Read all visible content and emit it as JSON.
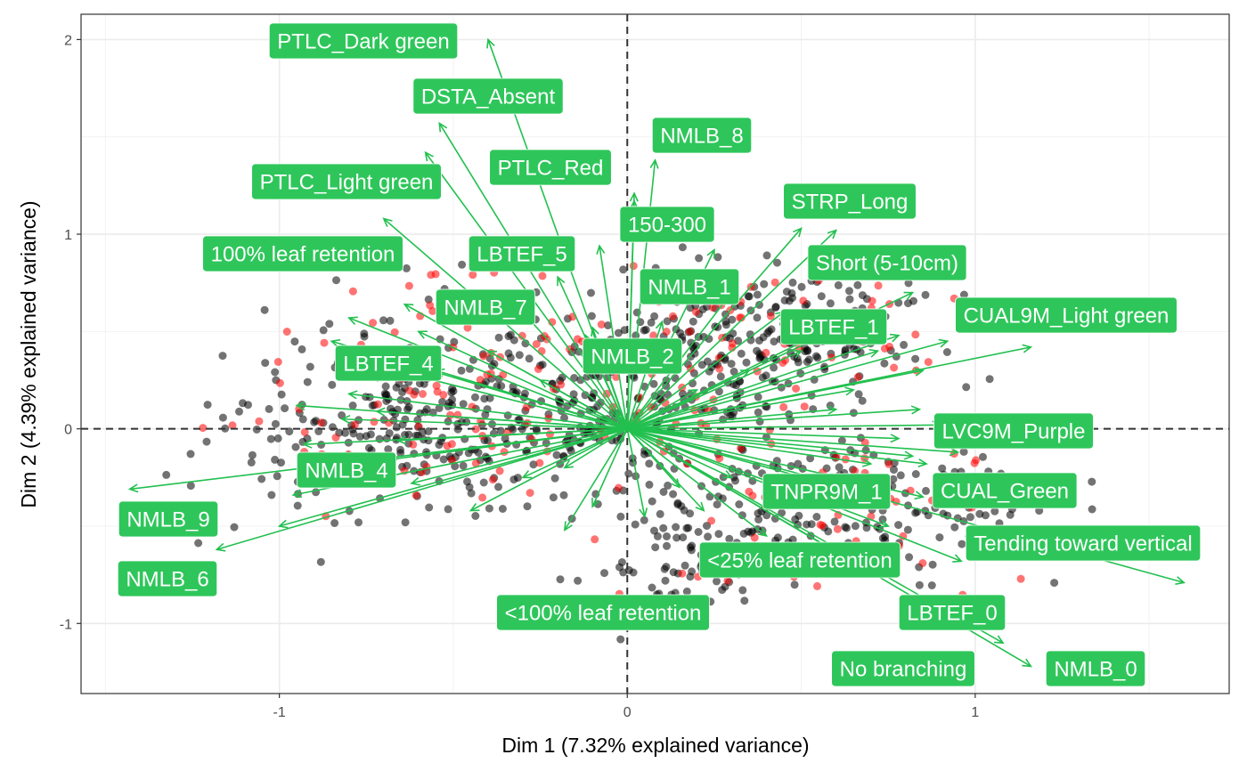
{
  "chart_data": {
    "type": "scatter",
    "title": "",
    "xlabel": "Dim 1 (7.32% explained variance)",
    "ylabel": "Dim 2 (4.39% explained variance)",
    "xlim": [
      -1.57,
      1.73
    ],
    "ylim": [
      -1.36,
      2.13
    ],
    "x_ticks": [
      -1,
      0,
      1
    ],
    "x_tick_labels": [
      "-1",
      "0",
      "1"
    ],
    "y_ticks": [
      -1,
      0,
      1,
      2
    ],
    "y_tick_labels": [
      "-1",
      "0",
      "1",
      "2"
    ],
    "grid": true,
    "reference_lines": {
      "x": 0,
      "y": 0,
      "style": "dashed"
    },
    "colors": {
      "arrows": "#22c04f",
      "label_bg": "#2ec65a",
      "label_text": "#ffffff",
      "point_black": "#000000",
      "point_red": "#ff0000"
    },
    "point_groups": [
      "black",
      "red"
    ],
    "labeled_vectors": [
      {
        "label": "PTLC_Dark green",
        "x": -0.4,
        "y": 2.0
      },
      {
        "label": "DSTA_Absent",
        "x": -0.54,
        "y": 1.57
      },
      {
        "label": "NMLB_8",
        "x": 0.08,
        "y": 1.38
      },
      {
        "label": "PTLC_Red",
        "x": 0.02,
        "y": 1.21
      },
      {
        "label": "PTLC_Light green",
        "x": -0.58,
        "y": 1.42
      },
      {
        "label": "STRP_Long",
        "x": 0.5,
        "y": 1.03
      },
      {
        "label": "150-300",
        "x": 0.02,
        "y": 1.17
      },
      {
        "label": "100% leaf retention",
        "x": -0.7,
        "y": 1.08
      },
      {
        "label": "LBTEF_5",
        "x": -0.08,
        "y": 0.94
      },
      {
        "label": "Short (5-10cm)",
        "x": 0.6,
        "y": 1.02
      },
      {
        "label": "NMLB_1",
        "x": 0.25,
        "y": 0.92
      },
      {
        "label": "NMLB_7",
        "x": -0.64,
        "y": 0.64
      },
      {
        "label": "CUAL9M_Light green",
        "x": 1.16,
        "y": 0.42
      },
      {
        "label": "LBTEF_1",
        "x": 0.82,
        "y": 0.7
      },
      {
        "label": "NMLB_2",
        "x": -0.1,
        "y": 0.52
      },
      {
        "label": "LBTEF_4",
        "x": -0.8,
        "y": 0.57
      },
      {
        "label": "LVC9M_Purple",
        "x": 0.84,
        "y": 0.1
      },
      {
        "label": "NMLB_4",
        "x": -0.96,
        "y": -0.34
      },
      {
        "label": "CUAL_Green",
        "x": 0.86,
        "y": -0.18
      },
      {
        "label": "TNPR9M_1",
        "x": 0.82,
        "y": -0.14
      },
      {
        "label": "NMLB_9",
        "x": -1.43,
        "y": -0.31
      },
      {
        "label": "Tending toward vertical",
        "x": 1.6,
        "y": -0.79
      },
      {
        "label": "NMLB_6",
        "x": -1.18,
        "y": -0.62
      },
      {
        "label": "<25% leaf retention",
        "x": 0.96,
        "y": -0.68
      },
      {
        "label": "<100% leaf retention",
        "x": -0.18,
        "y": -0.52
      },
      {
        "label": "LBTEF_0",
        "x": 1.08,
        "y": -1.1
      },
      {
        "label": "NMLB_0",
        "x": 1.16,
        "y": -1.22
      },
      {
        "label": "No branching",
        "x": 0.72,
        "y": -0.76
      }
    ]
  }
}
